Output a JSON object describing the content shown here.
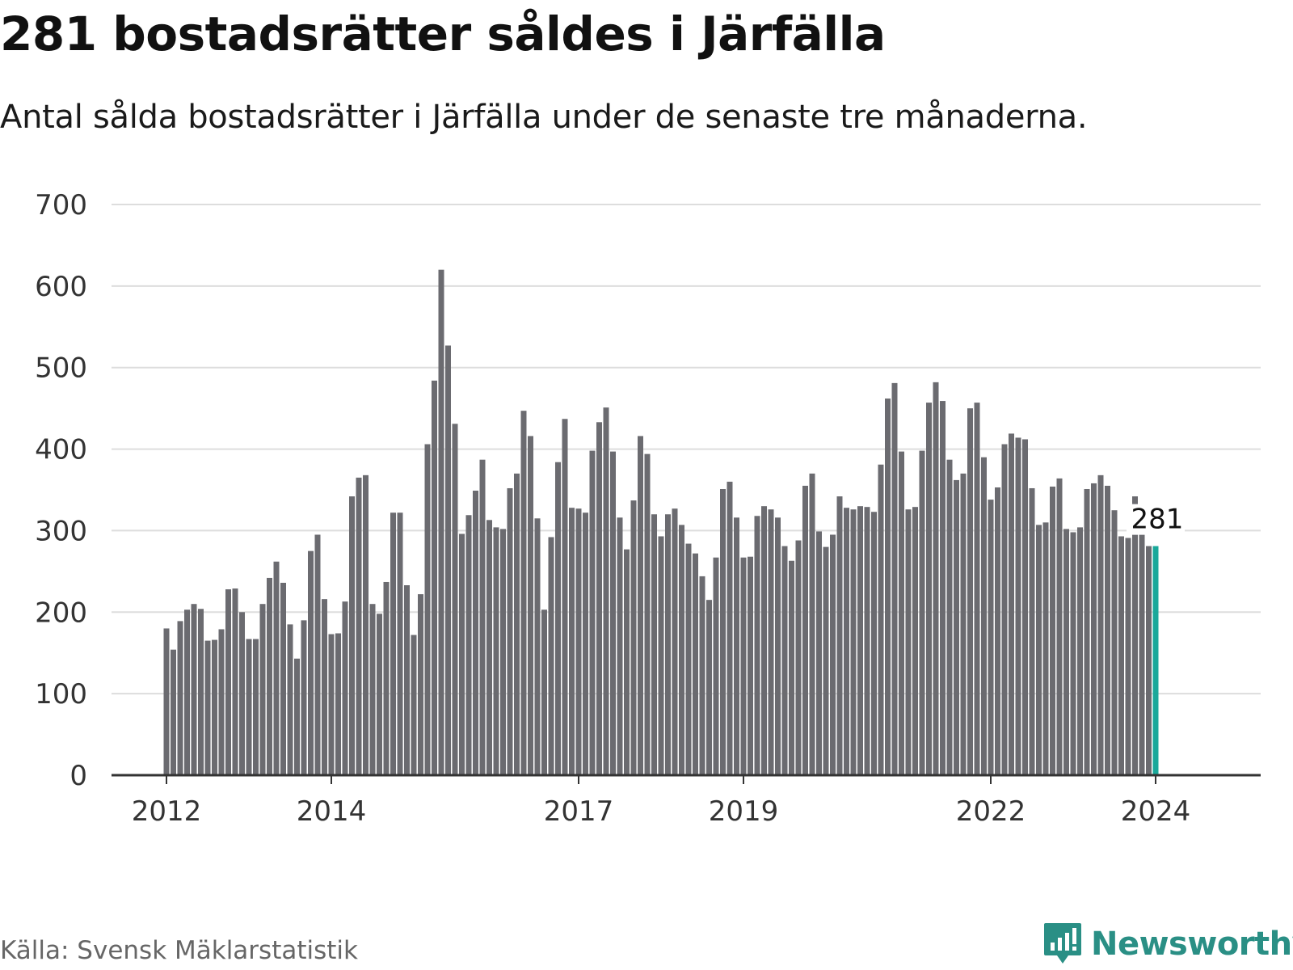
{
  "header": {
    "title": "281 bostadsrätter såldes i Järfälla",
    "subtitle": "Antal sålda bostadsrätter i Järfälla under de senaste tre månaderna."
  },
  "footer": {
    "source": "Källa: Svensk Mäklarstatistik",
    "brand": "Newsworthy"
  },
  "colors": {
    "bar": "#6b6b70",
    "highlight": "#1aa89a",
    "brand": "#2a8f85"
  },
  "chart_data": {
    "type": "bar",
    "title": "281 bostadsrätter såldes i Järfälla",
    "subtitle": "Antal sålda bostadsrätter i Järfälla under de senaste tre månaderna.",
    "xlabel": "",
    "ylabel": "",
    "ylim": [
      0,
      700
    ],
    "yticks": [
      0,
      100,
      200,
      300,
      400,
      500,
      600,
      700
    ],
    "xticks": [
      {
        "label": "2012",
        "index": 0
      },
      {
        "label": "2014",
        "index": 24
      },
      {
        "label": "2017",
        "index": 60
      },
      {
        "label": "2019",
        "index": 84
      },
      {
        "label": "2022",
        "index": 120
      },
      {
        "label": "2024",
        "index": 144
      }
    ],
    "start": "2012-01",
    "values": [
      180,
      154,
      189,
      203,
      210,
      204,
      165,
      166,
      179,
      228,
      229,
      200,
      167,
      167,
      210,
      242,
      262,
      236,
      185,
      143,
      190,
      275,
      295,
      216,
      173,
      174,
      213,
      342,
      365,
      368,
      210,
      198,
      237,
      322,
      322,
      233,
      172,
      222,
      406,
      484,
      620,
      527,
      431,
      296,
      319,
      349,
      387,
      313,
      304,
      302,
      352,
      370,
      447,
      416,
      315,
      203,
      292,
      384,
      437,
      328,
      327,
      322,
      398,
      433,
      451,
      397,
      316,
      277,
      337,
      416,
      394,
      320,
      293,
      320,
      327,
      307,
      284,
      272,
      244,
      215,
      267,
      351,
      360,
      316,
      267,
      268,
      318,
      330,
      326,
      316,
      281,
      263,
      288,
      355,
      370,
      299,
      280,
      295,
      342,
      328,
      326,
      330,
      329,
      323,
      381,
      462,
      481,
      397,
      326,
      329,
      398,
      457,
      482,
      459,
      387,
      362,
      370,
      450,
      457,
      390,
      338,
      353,
      406,
      419,
      414,
      412,
      352,
      307,
      310,
      354,
      364,
      302,
      298,
      304,
      351,
      358,
      368,
      355,
      325,
      293,
      291,
      342,
      296,
      281,
      281
    ],
    "highlight_index": 144,
    "annotation": {
      "text": "281",
      "index": 144
    }
  }
}
